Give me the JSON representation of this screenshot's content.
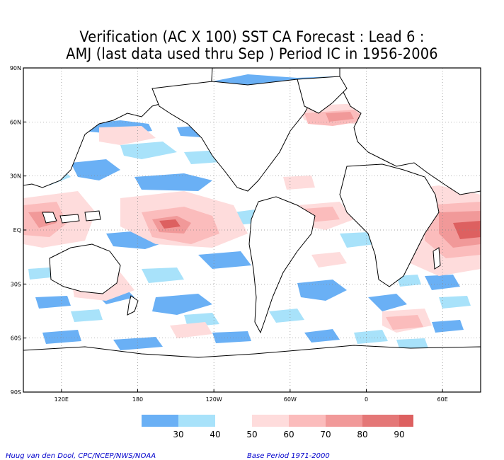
{
  "title_line1": "Verification (AC X 100) SST CA Forecast : Lead 6 :",
  "title_line2": "AMJ (last data used thru Sep ) Period IC in 1956-2006",
  "lat_labels": [
    "90N",
    "60N",
    "30N",
    "EQ",
    "30S",
    "60S",
    "90S"
  ],
  "lat_values": [
    90,
    60,
    30,
    0,
    -30,
    -60,
    -90
  ],
  "lon_labels": [
    "120E",
    "180",
    "120W",
    "60W",
    "0",
    "60E"
  ],
  "lon_values": [
    120,
    180,
    240,
    300,
    360,
    420
  ],
  "map_extent": {
    "lon_min": 90,
    "lon_max": 450,
    "lat_min": -90,
    "lat_max": 90
  },
  "colorbar": {
    "levels": [
      "30",
      "40",
      "50",
      "60",
      "70",
      "80",
      "90"
    ],
    "colors": [
      "#6ab0f5",
      "#a8e2fa",
      "#ffffff",
      "#fedcdc",
      "#fbbcbc",
      "#f19999",
      "#e47777",
      "#dd6060"
    ]
  },
  "footer_left": "Huug van den Dool, CPC/NCEP/NWS/NOAA",
  "footer_right": "Base Period 1971-2000"
}
